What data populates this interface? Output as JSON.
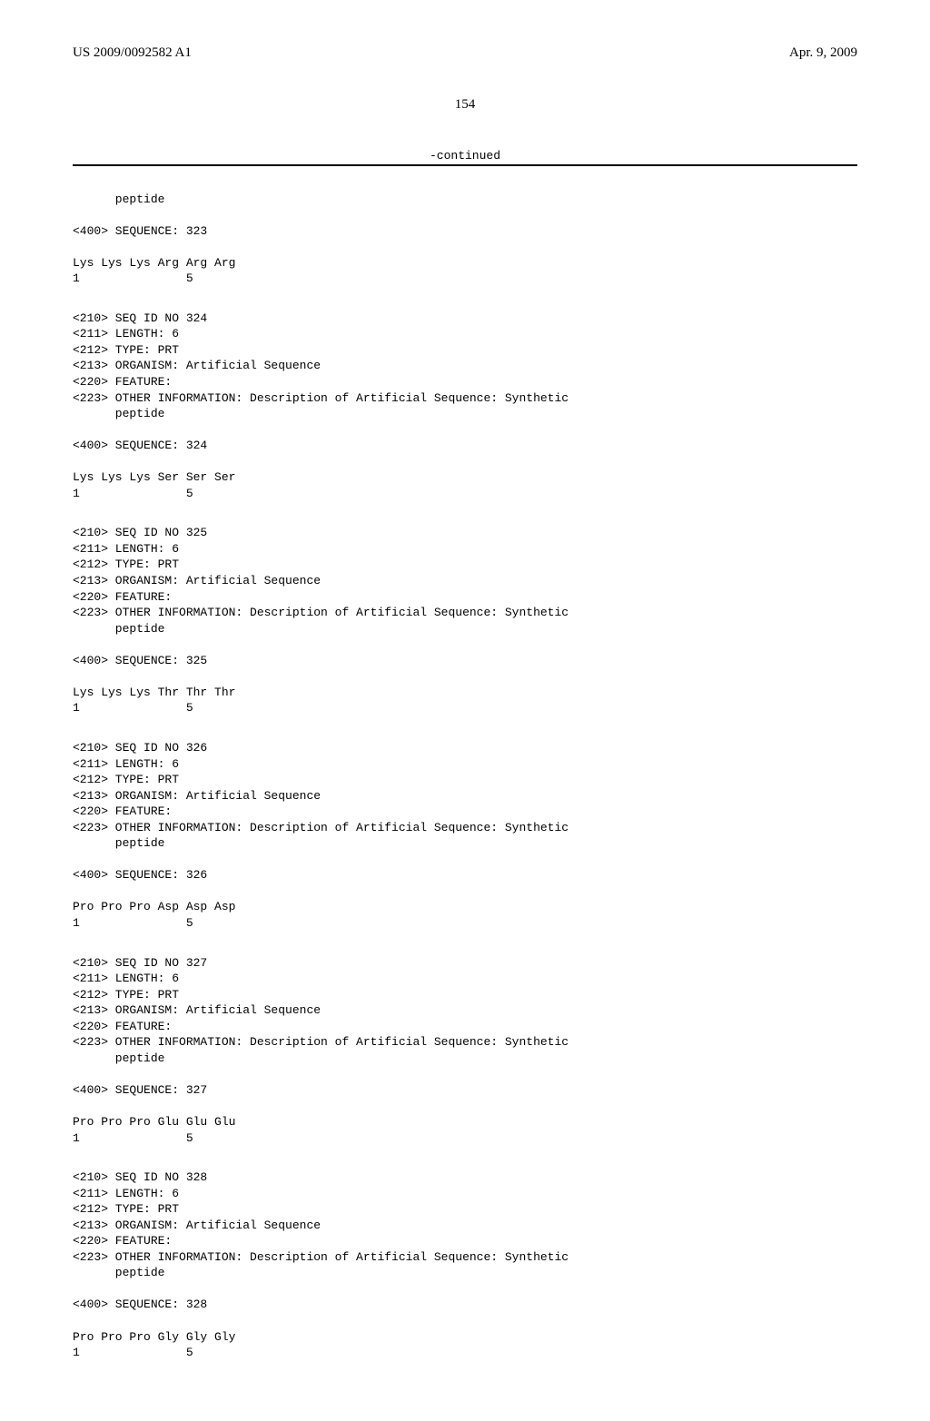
{
  "header": {
    "pub_number": "US 2009/0092582 A1",
    "pub_date": "Apr. 9, 2009"
  },
  "page_number": "154",
  "continued_label": "-continued",
  "top_fragment": {
    "peptide_line": "      peptide",
    "seq_header": "<400> SEQUENCE: 323",
    "residues": "Lys Lys Lys Arg Arg Arg",
    "positions": "1               5"
  },
  "entries": [
    {
      "id_line": "<210> SEQ ID NO 324",
      "length_line": "<211> LENGTH: 6",
      "type_line": "<212> TYPE: PRT",
      "organism_line": "<213> ORGANISM: Artificial Sequence",
      "feature_line": "<220> FEATURE:",
      "other_info_line": "<223> OTHER INFORMATION: Description of Artificial Sequence: Synthetic",
      "peptide_line": "      peptide",
      "seq_header": "<400> SEQUENCE: 324",
      "residues": "Lys Lys Lys Ser Ser Ser",
      "positions": "1               5"
    },
    {
      "id_line": "<210> SEQ ID NO 325",
      "length_line": "<211> LENGTH: 6",
      "type_line": "<212> TYPE: PRT",
      "organism_line": "<213> ORGANISM: Artificial Sequence",
      "feature_line": "<220> FEATURE:",
      "other_info_line": "<223> OTHER INFORMATION: Description of Artificial Sequence: Synthetic",
      "peptide_line": "      peptide",
      "seq_header": "<400> SEQUENCE: 325",
      "residues": "Lys Lys Lys Thr Thr Thr",
      "positions": "1               5"
    },
    {
      "id_line": "<210> SEQ ID NO 326",
      "length_line": "<211> LENGTH: 6",
      "type_line": "<212> TYPE: PRT",
      "organism_line": "<213> ORGANISM: Artificial Sequence",
      "feature_line": "<220> FEATURE:",
      "other_info_line": "<223> OTHER INFORMATION: Description of Artificial Sequence: Synthetic",
      "peptide_line": "      peptide",
      "seq_header": "<400> SEQUENCE: 326",
      "residues": "Pro Pro Pro Asp Asp Asp",
      "positions": "1               5"
    },
    {
      "id_line": "<210> SEQ ID NO 327",
      "length_line": "<211> LENGTH: 6",
      "type_line": "<212> TYPE: PRT",
      "organism_line": "<213> ORGANISM: Artificial Sequence",
      "feature_line": "<220> FEATURE:",
      "other_info_line": "<223> OTHER INFORMATION: Description of Artificial Sequence: Synthetic",
      "peptide_line": "      peptide",
      "seq_header": "<400> SEQUENCE: 327",
      "residues": "Pro Pro Pro Glu Glu Glu",
      "positions": "1               5"
    },
    {
      "id_line": "<210> SEQ ID NO 328",
      "length_line": "<211> LENGTH: 6",
      "type_line": "<212> TYPE: PRT",
      "organism_line": "<213> ORGANISM: Artificial Sequence",
      "feature_line": "<220> FEATURE:",
      "other_info_line": "<223> OTHER INFORMATION: Description of Artificial Sequence: Synthetic",
      "peptide_line": "      peptide",
      "seq_header": "<400> SEQUENCE: 328",
      "residues": "Pro Pro Pro Gly Gly Gly",
      "positions": "1               5"
    }
  ]
}
